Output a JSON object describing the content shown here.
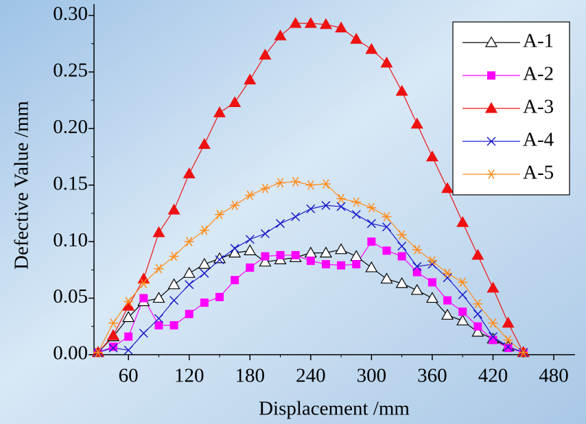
{
  "chart_data": {
    "type": "line",
    "x_label": "Displacement /mm",
    "y_label": "Defective Value /mm",
    "x": [
      30,
      45,
      60,
      75,
      90,
      105,
      120,
      135,
      150,
      165,
      180,
      195,
      210,
      225,
      240,
      255,
      270,
      285,
      300,
      315,
      330,
      345,
      360,
      375,
      390,
      405,
      420,
      435,
      450
    ],
    "xlim": [
      26,
      501
    ],
    "xticks": [
      60,
      120,
      180,
      240,
      300,
      360,
      420,
      480
    ],
    "ylim": [
      0,
      0.31
    ],
    "yticks": [
      {
        "value": 0,
        "label": "0.00"
      },
      0.05,
      {
        "value": 0.1,
        "label": "0.10"
      },
      0.15,
      {
        "value": 0.2,
        "label": "0.20"
      },
      0.25,
      {
        "value": 0.3,
        "label": "0.30"
      }
    ],
    "legend_position": "upper right",
    "series": [
      {
        "name": "A-1",
        "color": "#000000",
        "marker": "triangle-open",
        "values": [
          0.002,
          0.016,
          0.033,
          0.047,
          0.05,
          0.062,
          0.072,
          0.08,
          0.085,
          0.09,
          0.092,
          0.082,
          0.084,
          0.086,
          0.09,
          0.09,
          0.093,
          0.087,
          0.077,
          0.067,
          0.063,
          0.057,
          0.05,
          0.035,
          0.03,
          0.02,
          0.014,
          0.007,
          0.002
        ]
      },
      {
        "name": "A-2",
        "color": "#ff00ff",
        "marker": "square",
        "values": [
          0.002,
          0.007,
          0.016,
          0.05,
          0.026,
          0.026,
          0.036,
          0.046,
          0.051,
          0.066,
          0.077,
          0.087,
          0.088,
          0.088,
          0.083,
          0.08,
          0.079,
          0.08,
          0.1,
          0.092,
          0.087,
          0.073,
          0.064,
          0.048,
          0.038,
          0.025,
          0.013,
          0.006,
          0.002
        ]
      },
      {
        "name": "A-3",
        "color": "#ee1111",
        "marker": "triangle",
        "values": [
          0.002,
          0.017,
          0.043,
          0.067,
          0.108,
          0.128,
          0.16,
          0.186,
          0.214,
          0.223,
          0.243,
          0.265,
          0.282,
          0.293,
          0.293,
          0.292,
          0.289,
          0.279,
          0.27,
          0.258,
          0.233,
          0.204,
          0.175,
          0.147,
          0.117,
          0.088,
          0.059,
          0.028,
          0.002
        ]
      },
      {
        "name": "A-4",
        "color": "#1a1acc",
        "marker": "x",
        "values": [
          0.002,
          0.006,
          0.004,
          0.019,
          0.032,
          0.048,
          0.062,
          0.072,
          0.084,
          0.094,
          0.102,
          0.107,
          0.116,
          0.122,
          0.129,
          0.132,
          0.131,
          0.124,
          0.116,
          0.113,
          0.096,
          0.078,
          0.08,
          0.068,
          0.053,
          0.036,
          0.016,
          0.007,
          0.002
        ]
      },
      {
        "name": "A-5",
        "color": "#ff8c1a",
        "marker": "asterisk",
        "values": [
          0.002,
          0.028,
          0.047,
          0.063,
          0.076,
          0.087,
          0.1,
          0.11,
          0.124,
          0.132,
          0.141,
          0.147,
          0.152,
          0.153,
          0.15,
          0.151,
          0.138,
          0.135,
          0.13,
          0.122,
          0.106,
          0.093,
          0.083,
          0.072,
          0.064,
          0.045,
          0.028,
          0.013,
          0.002
        ]
      }
    ]
  }
}
